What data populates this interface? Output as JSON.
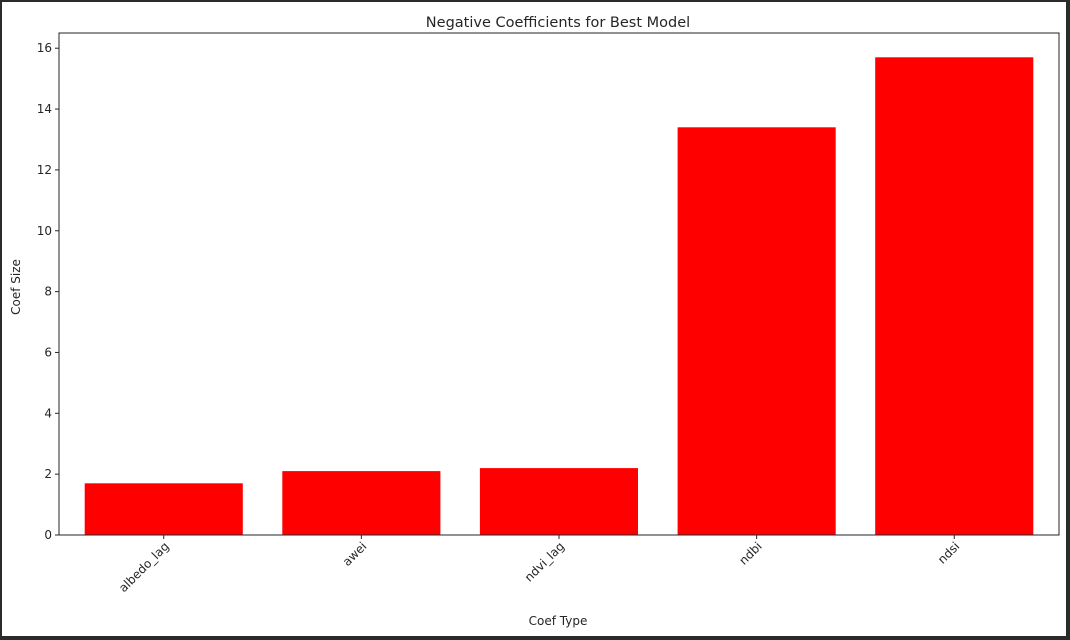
{
  "chart_data": {
    "type": "bar",
    "title": "Negative Coefficients for Best Model",
    "xlabel": "Coef Type",
    "ylabel": "Coef Size",
    "categories": [
      "albedo_lag",
      "awei",
      "ndvi_lag",
      "ndbi",
      "ndsi"
    ],
    "values": [
      1.7,
      2.1,
      2.2,
      13.4,
      15.7
    ],
    "ylim": [
      0,
      16.5
    ],
    "yticks": [
      0,
      2,
      4,
      6,
      8,
      10,
      12,
      14,
      16
    ],
    "bar_color": "#ff0000",
    "xtick_rotation_deg": 45,
    "grid": false,
    "legend": "none"
  }
}
